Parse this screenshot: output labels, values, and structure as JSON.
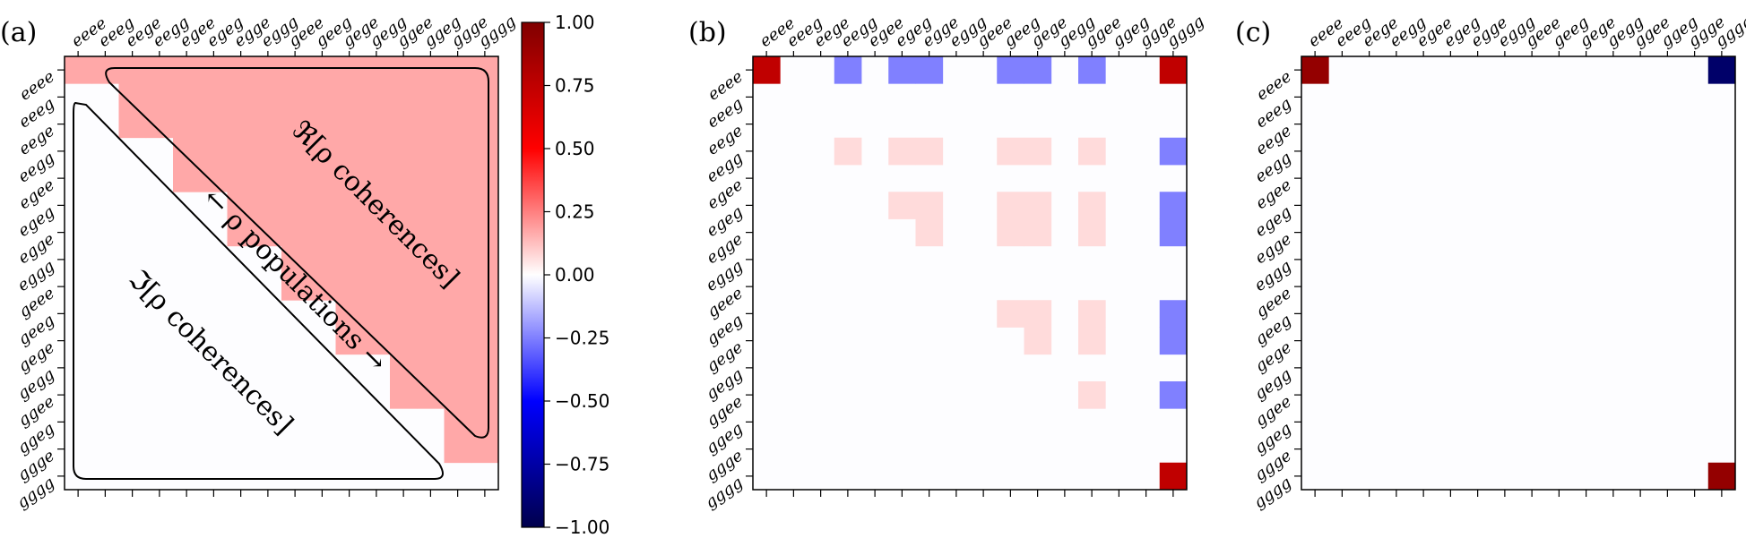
{
  "basis_labels": [
    "eeee",
    "eeeg",
    "eege",
    "eegg",
    "egee",
    "egeg",
    "egge",
    "eggg",
    "geee",
    "geeg",
    "gege",
    "gegg",
    "ggee",
    "ggeg",
    "ggge",
    "gggg"
  ],
  "colorbar": {
    "ticks": [
      "1.00",
      "0.75",
      "0.50",
      "0.25",
      "0.00",
      "−0.25",
      "−0.50",
      "−0.75",
      "−1.00"
    ],
    "range": [
      -1,
      1
    ],
    "colormap": "seismic"
  },
  "panels": [
    {
      "label": "(a)"
    },
    {
      "label": "(b)"
    },
    {
      "label": "(c)"
    }
  ],
  "annotations": {
    "real": "ℜ[ρ coherences]",
    "populations": "← ρ populations →",
    "imag": "ℑ[ρ coherences]"
  },
  "chart_data": [
    {
      "type": "heatmap",
      "title": "(a)",
      "rows": [
        "eeee",
        "eeeg",
        "eege",
        "eegg",
        "egee",
        "egeg",
        "egge",
        "eggg",
        "geee",
        "geeg",
        "gege",
        "gegg",
        "ggee",
        "ggeg",
        "ggge",
        "gggg"
      ],
      "cols": [
        "eeee",
        "eeeg",
        "eege",
        "eegg",
        "egee",
        "egeg",
        "egge",
        "eggg",
        "geee",
        "geeg",
        "gege",
        "gegg",
        "ggee",
        "ggeg",
        "ggge",
        "gggg"
      ],
      "description_values": {
        "upper_triangle": 0.17,
        "diagonal_alternating": [
          0.17,
          0.0
        ],
        "lower_triangle": 0.0
      },
      "vmin": -1,
      "vmax": 1
    },
    {
      "type": "heatmap",
      "title": "(b)",
      "rows": [
        "eeee",
        "eeeg",
        "eege",
        "eegg",
        "egee",
        "egeg",
        "egge",
        "eggg",
        "geee",
        "geeg",
        "gege",
        "gegg",
        "ggee",
        "ggeg",
        "ggge",
        "gggg"
      ],
      "cols": [
        "eeee",
        "eeeg",
        "eege",
        "eegg",
        "egee",
        "egeg",
        "egge",
        "eggg",
        "geee",
        "geeg",
        "gege",
        "gegg",
        "ggee",
        "ggeg",
        "ggge",
        "gggg"
      ],
      "cells": [
        [
          0,
          0,
          0.75
        ],
        [
          0,
          15,
          0.75
        ],
        [
          15,
          15,
          0.75
        ],
        [
          0,
          3,
          -0.25
        ],
        [
          0,
          5,
          -0.25
        ],
        [
          0,
          6,
          -0.25
        ],
        [
          0,
          9,
          -0.25
        ],
        [
          0,
          10,
          -0.25
        ],
        [
          0,
          12,
          -0.25
        ],
        [
          3,
          15,
          -0.25
        ],
        [
          5,
          15,
          -0.25
        ],
        [
          6,
          15,
          -0.25
        ],
        [
          9,
          15,
          -0.25
        ],
        [
          10,
          15,
          -0.25
        ],
        [
          12,
          15,
          -0.25
        ],
        [
          3,
          3,
          0.07
        ],
        [
          3,
          5,
          0.07
        ],
        [
          3,
          6,
          0.07
        ],
        [
          3,
          9,
          0.07
        ],
        [
          3,
          10,
          0.07
        ],
        [
          3,
          12,
          0.07
        ],
        [
          5,
          5,
          0.07
        ],
        [
          5,
          6,
          0.07
        ],
        [
          5,
          9,
          0.07
        ],
        [
          5,
          10,
          0.07
        ],
        [
          5,
          12,
          0.07
        ],
        [
          6,
          6,
          0.07
        ],
        [
          6,
          9,
          0.07
        ],
        [
          6,
          10,
          0.07
        ],
        [
          6,
          12,
          0.07
        ],
        [
          9,
          9,
          0.07
        ],
        [
          9,
          10,
          0.07
        ],
        [
          9,
          12,
          0.07
        ],
        [
          10,
          10,
          0.07
        ],
        [
          10,
          12,
          0.07
        ],
        [
          12,
          12,
          0.07
        ]
      ],
      "vmin": -1,
      "vmax": 1
    },
    {
      "type": "heatmap",
      "title": "(c)",
      "rows": [
        "eeee",
        "eeeg",
        "eege",
        "eegg",
        "egee",
        "egeg",
        "egge",
        "eggg",
        "geee",
        "geeg",
        "gege",
        "gegg",
        "ggee",
        "ggeg",
        "ggge",
        "gggg"
      ],
      "cols": [
        "eeee",
        "eeeg",
        "eege",
        "eegg",
        "egee",
        "egeg",
        "egge",
        "eggg",
        "geee",
        "geeg",
        "gege",
        "gegg",
        "ggee",
        "ggeg",
        "ggge",
        "gggg"
      ],
      "cells": [
        [
          0,
          0,
          0.92
        ],
        [
          15,
          15,
          0.92
        ],
        [
          0,
          15,
          -0.92
        ]
      ],
      "vmin": -1,
      "vmax": 1
    }
  ]
}
